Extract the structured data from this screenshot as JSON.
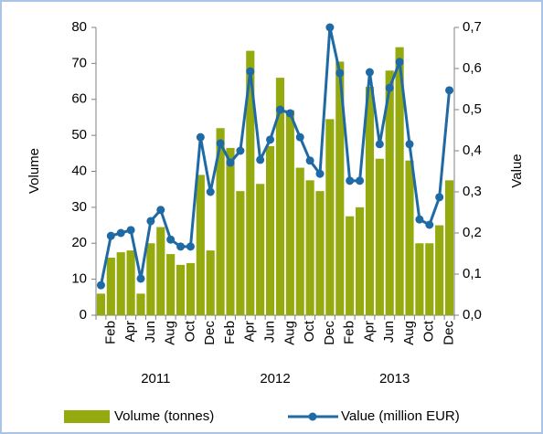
{
  "chart_data": {
    "type": "bar",
    "y_label": "Volume",
    "y2_label": "Value",
    "categories": [
      null,
      "Feb",
      null,
      "Apr",
      null,
      "Jun",
      null,
      "Aug",
      null,
      "Oct",
      null,
      "Dec",
      null,
      "Feb",
      null,
      "Apr",
      null,
      "Jun",
      null,
      "Aug",
      null,
      "Oct",
      null,
      "Dec",
      null,
      "Feb",
      null,
      "Apr",
      null,
      "Jun",
      null,
      "Aug",
      null,
      "Oct",
      null,
      "Dec"
    ],
    "year_labels": [
      "2011",
      "2012",
      "2013"
    ],
    "series": [
      {
        "name": "Volume (tonnes)",
        "type": "bar",
        "axis": "y",
        "color": "#94aa0e",
        "values": [
          6,
          16,
          17.5,
          18,
          6,
          20,
          24.5,
          17,
          14,
          14.5,
          39,
          18,
          52,
          46.5,
          34.5,
          73.5,
          36.5,
          47,
          66,
          57,
          41,
          37.5,
          34.5,
          54.5,
          70.5,
          27.5,
          30,
          63.5,
          43.5,
          68,
          74.5,
          43,
          20,
          20,
          25,
          37.5
        ]
      },
      {
        "name": "Value (million EUR)",
        "type": "line",
        "axis": "y2",
        "color": "#1f6aa5",
        "values": [
          0.073,
          0.193,
          0.2,
          0.207,
          0.089,
          0.229,
          0.256,
          0.184,
          0.167,
          0.167,
          0.433,
          0.3,
          0.418,
          0.371,
          0.4,
          0.593,
          0.378,
          0.427,
          0.5,
          0.491,
          0.433,
          0.376,
          0.344,
          0.7,
          0.589,
          0.327,
          0.327,
          0.591,
          0.416,
          0.553,
          0.616,
          0.416,
          0.233,
          0.22,
          0.287,
          0.547
        ]
      }
    ],
    "ylim": [
      0,
      80
    ],
    "yticks": [
      0,
      10,
      20,
      30,
      40,
      50,
      60,
      70,
      80
    ],
    "y2lim": [
      0,
      0.7
    ],
    "y2ticks": [
      {
        "value": 0,
        "label": "0,0"
      },
      {
        "value": 0.1,
        "label": "0,1"
      },
      {
        "value": 0.2,
        "label": "0,2"
      },
      {
        "value": 0.3,
        "label": "0,3"
      },
      {
        "value": 0.4,
        "label": "0,4"
      },
      {
        "value": 0.5,
        "label": "0,5"
      },
      {
        "value": 0.6,
        "label": "0,6"
      },
      {
        "value": 0.7,
        "label": "0,7"
      }
    ]
  }
}
